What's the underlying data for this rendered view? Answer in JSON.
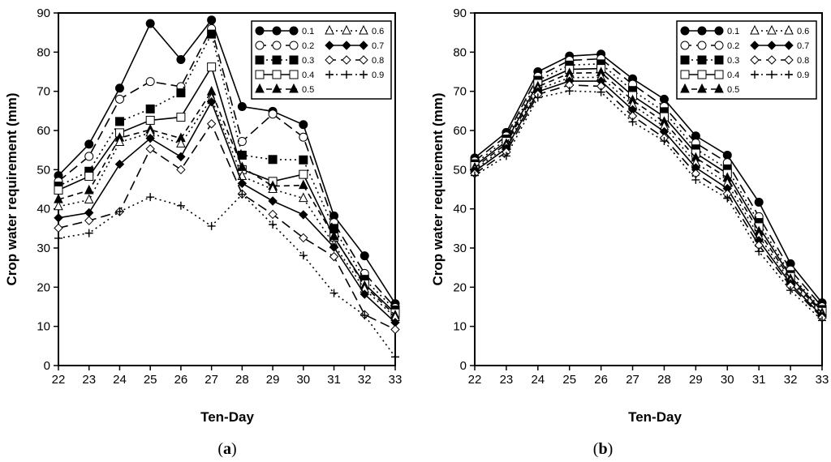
{
  "chart_data": [
    {
      "type": "line",
      "panel_label": "(a)",
      "xlabel": "Ten-Day",
      "ylabel": "Crop water requirement (mm)",
      "ylim": [
        0,
        90
      ],
      "yticks": [
        "0",
        "10",
        "20",
        "30",
        "40",
        "50",
        "60",
        "70",
        "80",
        "90"
      ],
      "x": [
        22,
        23,
        24,
        25,
        26,
        27,
        28,
        29,
        30,
        31,
        32,
        33
      ],
      "series": [
        {
          "name": "0.1",
          "marker": "circle-filled",
          "dash": "solid",
          "values": [
            48.5,
            56.5,
            70.8,
            87.3,
            78.1,
            88.2,
            66.1,
            64.9,
            61.5,
            38.2,
            28.0,
            15.8
          ]
        },
        {
          "name": "0.2",
          "marker": "circle-open",
          "dash": "longdash",
          "values": [
            47.0,
            53.4,
            68.0,
            72.5,
            71.2,
            86.0,
            57.2,
            64.2,
            58.3,
            36.5,
            23.5,
            14.8
          ]
        },
        {
          "name": "0.3",
          "marker": "square-filled",
          "dash": "dot",
          "values": [
            45.8,
            49.6,
            62.3,
            65.5,
            69.6,
            84.6,
            53.7,
            52.6,
            52.5,
            35.0,
            22.0,
            14.2
          ]
        },
        {
          "name": "0.4",
          "marker": "square-open",
          "dash": "solid",
          "values": [
            44.8,
            48.3,
            59.4,
            62.6,
            63.4,
            76.2,
            50.0,
            47.0,
            48.8,
            32.8,
            20.8,
            13.4
          ]
        },
        {
          "name": "0.5",
          "marker": "triangle-filled",
          "dash": "dash",
          "values": [
            42.4,
            44.7,
            58.1,
            60.2,
            58.0,
            69.9,
            50.6,
            45.8,
            46.0,
            33.0,
            20.3,
            12.8
          ]
        },
        {
          "name": "0.6",
          "marker": "triangle-open",
          "dash": "dot",
          "values": [
            40.6,
            42.3,
            57.0,
            59.4,
            56.6,
            68.2,
            48.3,
            45.0,
            42.7,
            30.9,
            19.5,
            12.3
          ]
        },
        {
          "name": "0.7",
          "marker": "diamond-filled",
          "dash": "solid",
          "values": [
            37.7,
            39.0,
            51.4,
            58.0,
            53.3,
            67.3,
            46.5,
            42.0,
            38.5,
            30.2,
            18.2,
            11.0
          ]
        },
        {
          "name": "0.8",
          "marker": "diamond-open",
          "dash": "longdash",
          "values": [
            35.1,
            37.0,
            39.3,
            55.3,
            50.0,
            61.7,
            43.8,
            38.6,
            32.6,
            27.8,
            13.0,
            9.2
          ]
        },
        {
          "name": "0.9",
          "marker": "plus",
          "dash": "dot",
          "values": [
            32.5,
            33.8,
            39.3,
            43.0,
            40.8,
            35.6,
            43.7,
            36.0,
            28.1,
            18.5,
            12.8,
            2.2
          ]
        }
      ]
    },
    {
      "type": "line",
      "panel_label": "(b)",
      "xlabel": "Ten-Day",
      "ylabel": "Crop water requirement (mm)",
      "ylim": [
        0,
        90
      ],
      "yticks": [
        "0",
        "10",
        "20",
        "30",
        "40",
        "50",
        "60",
        "70",
        "80",
        "90"
      ],
      "x": [
        22,
        23,
        24,
        25,
        26,
        27,
        28,
        29,
        30,
        31,
        32,
        33
      ],
      "series": [
        {
          "name": "0.1",
          "marker": "circle-filled",
          "dash": "solid",
          "values": [
            53.0,
            59.5,
            75.0,
            79.0,
            79.5,
            73.2,
            68.0,
            58.6,
            53.7,
            41.7,
            26.0,
            16.0
          ]
        },
        {
          "name": "0.2",
          "marker": "circle-open",
          "dash": "longdash",
          "values": [
            52.2,
            58.6,
            73.8,
            77.9,
            78.3,
            71.8,
            66.1,
            56.8,
            51.8,
            38.0,
            24.4,
            15.0
          ]
        },
        {
          "name": "0.3",
          "marker": "square-filled",
          "dash": "dot",
          "values": [
            51.5,
            57.8,
            72.8,
            76.7,
            77.0,
            70.2,
            64.8,
            55.3,
            50.2,
            36.5,
            23.2,
            14.3
          ]
        },
        {
          "name": "0.4",
          "marker": "square-open",
          "dash": "solid",
          "values": [
            51.0,
            57.2,
            72.0,
            75.6,
            75.8,
            68.9,
            63.5,
            54.2,
            49.0,
            35.4,
            22.7,
            13.8
          ]
        },
        {
          "name": "0.5",
          "marker": "triangle-filled",
          "dash": "dash",
          "values": [
            50.5,
            56.6,
            71.2,
            74.6,
            74.8,
            67.7,
            62.2,
            53.0,
            47.9,
            34.2,
            22.1,
            13.4
          ]
        },
        {
          "name": "0.6",
          "marker": "triangle-open",
          "dash": "dot",
          "values": [
            50.0,
            56.0,
            70.5,
            73.5,
            73.6,
            66.5,
            61.0,
            51.7,
            46.5,
            33.0,
            21.5,
            13.0
          ]
        },
        {
          "name": "0.7",
          "marker": "diamond-filled",
          "dash": "solid",
          "values": [
            49.6,
            55.4,
            69.9,
            72.6,
            72.6,
            65.3,
            59.7,
            50.5,
            45.2,
            31.9,
            20.9,
            12.6
          ]
        },
        {
          "name": "0.8",
          "marker": "diamond-open",
          "dash": "longdash",
          "values": [
            49.0,
            54.5,
            69.2,
            71.6,
            71.3,
            63.7,
            58.1,
            49.0,
            43.8,
            30.7,
            20.3,
            12.2
          ]
        },
        {
          "name": "0.9",
          "marker": "plus",
          "dash": "dot",
          "values": [
            48.5,
            53.5,
            68.4,
            70.1,
            69.8,
            62.2,
            57.3,
            47.4,
            42.7,
            29.1,
            19.2,
            11.5
          ]
        }
      ]
    }
  ]
}
